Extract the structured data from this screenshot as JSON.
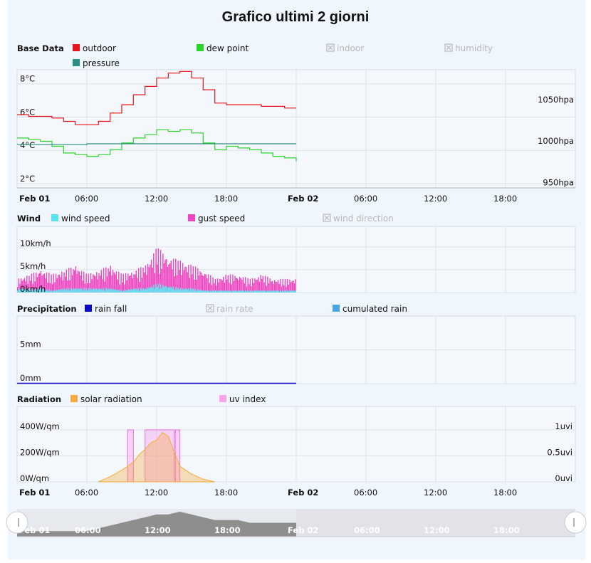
{
  "title": "Grafico ultimi 2 giorni",
  "chart_data": [
    {
      "id": "base",
      "type": "line",
      "section_label": "Base Data",
      "legend": [
        {
          "name": "outdoor",
          "color": "#e8141b",
          "enabled": true
        },
        {
          "name": "dew point",
          "color": "#2ad52a",
          "enabled": true
        },
        {
          "name": "indoor",
          "enabled": false
        },
        {
          "name": "humidity",
          "enabled": false
        },
        {
          "name": "pressure",
          "color": "#2a8f80",
          "enabled": true
        }
      ],
      "yticks_left": [
        "8°C",
        "6°C",
        "4°C",
        "2°C"
      ],
      "yticks_left_values": [
        8,
        6,
        4,
        2
      ],
      "ylim_left": [
        1.7,
        8.8
      ],
      "yticks_right": [
        "1050hpa",
        "1000hpa",
        "950hpa"
      ],
      "yticks_right_values": [
        1050,
        1000,
        950
      ],
      "ylim_right": [
        948,
        1090
      ],
      "x_hours": [
        0,
        1,
        2,
        3,
        4,
        5,
        6,
        7,
        8,
        9,
        10,
        11,
        12,
        13,
        14,
        15,
        16,
        17,
        18,
        19,
        20,
        21,
        22,
        23,
        24
      ],
      "series": [
        {
          "name": "outdoor",
          "color": "#e8141b",
          "values": [
            6.1,
            6.0,
            6.0,
            5.9,
            5.7,
            5.5,
            5.5,
            5.7,
            6.2,
            6.7,
            7.3,
            7.8,
            8.3,
            8.6,
            8.7,
            8.3,
            7.6,
            6.8,
            6.7,
            6.7,
            6.7,
            6.6,
            6.6,
            6.5,
            6.5
          ]
        },
        {
          "name": "dew point",
          "color": "#2ad52a",
          "values": [
            4.7,
            4.6,
            4.5,
            4.2,
            3.8,
            3.7,
            3.6,
            3.7,
            4.0,
            4.4,
            4.7,
            4.9,
            5.2,
            5.1,
            5.2,
            5.0,
            4.4,
            4.0,
            4.2,
            4.1,
            4.0,
            3.8,
            3.6,
            3.5,
            3.3
          ]
        },
        {
          "name": "pressure",
          "color": "#2a8f80",
          "axis": "right",
          "values": [
            1000,
            1000,
            1000,
            1000,
            1000,
            1000,
            1001,
            1001,
            1001,
            1001,
            1001,
            1001,
            1001,
            1001,
            1001,
            1001,
            1001,
            1001,
            1001,
            1001,
            1001,
            1001,
            1001,
            1001,
            1001
          ]
        }
      ]
    },
    {
      "id": "wind",
      "type": "bar",
      "section_label": "Wind",
      "legend": [
        {
          "name": "wind speed",
          "color": "#5be3ef",
          "enabled": true
        },
        {
          "name": "gust speed",
          "color": "#ee45c0",
          "enabled": true
        },
        {
          "name": "wind direction",
          "enabled": false
        }
      ],
      "yticks_left": [
        "10km/h",
        "5km/h",
        "0km/h"
      ],
      "yticks_left_values": [
        10,
        5,
        0
      ],
      "ylim_left": [
        0,
        14.5
      ],
      "x_hours": [
        0,
        1,
        2,
        3,
        4,
        5,
        6,
        7,
        8,
        9,
        10,
        11,
        12,
        13,
        14,
        15,
        16,
        17,
        18,
        19,
        20,
        21,
        22,
        23,
        24
      ],
      "series": [
        {
          "name": "gust speed",
          "color": "#ee45c0",
          "values": [
            3,
            4,
            5,
            4,
            5,
            6,
            4,
            5,
            6,
            4,
            5,
            6,
            10,
            8,
            7,
            6,
            5,
            3,
            4,
            4,
            3,
            4,
            3,
            3,
            3
          ]
        },
        {
          "name": "wind speed",
          "color": "#5be3ef",
          "values": [
            1,
            1,
            1,
            0.5,
            1,
            1,
            1,
            1,
            1,
            0.5,
            1,
            1,
            2,
            1.5,
            1,
            1,
            0.5,
            0.5,
            0.5,
            0.5,
            0.5,
            0.5,
            0.5,
            0.5,
            0.5
          ]
        }
      ]
    },
    {
      "id": "precip",
      "type": "line",
      "section_label": "Precipitation",
      "legend": [
        {
          "name": "rain fall",
          "color": "#0a0bc9",
          "enabled": true
        },
        {
          "name": "rain rate",
          "enabled": false
        },
        {
          "name": "cumulated rain",
          "color": "#4aa6ea",
          "enabled": true
        }
      ],
      "yticks_left": [
        "5mm",
        "0mm"
      ],
      "yticks_left_values": [
        5,
        0
      ],
      "ylim_left": [
        0,
        10
      ],
      "x_hours": [
        0,
        24
      ],
      "series": [
        {
          "name": "rain fall",
          "color": "#0a0bc9",
          "values": [
            0,
            0
          ]
        }
      ]
    },
    {
      "id": "radiation",
      "type": "area",
      "section_label": "Radiation",
      "legend": [
        {
          "name": "solar radiation",
          "color": "#f7a93a",
          "enabled": true
        },
        {
          "name": "uv index",
          "color": "#f7a3ee",
          "enabled": true
        }
      ],
      "yticks_left": [
        "400W/qm",
        "200W/qm",
        "0W/qm"
      ],
      "yticks_left_values": [
        400,
        200,
        0
      ],
      "ylim_left": [
        0,
        580
      ],
      "yticks_right": [
        "1uvi",
        "0.5uvi",
        "0uvi"
      ],
      "yticks_right_values": [
        1,
        0.5,
        0
      ],
      "ylim_right": [
        0,
        1.45
      ],
      "x_hours": [
        7,
        8,
        9,
        10,
        10.5,
        11,
        11.5,
        12,
        12.5,
        13,
        13.5,
        14,
        15,
        16,
        17
      ],
      "series": [
        {
          "name": "solar radiation",
          "color": "#f7a93a",
          "values": [
            0,
            40,
            90,
            150,
            210,
            250,
            300,
            320,
            380,
            350,
            230,
            120,
            60,
            20,
            0
          ]
        },
        {
          "name": "uv index",
          "color": "#f7a3ee",
          "segments": [
            [
              9.5,
              10.0,
              1
            ],
            [
              11.0,
              13.5,
              1
            ],
            [
              13.6,
              14.0,
              1
            ]
          ]
        }
      ]
    }
  ],
  "x_axis_labels": [
    "Feb 01",
    "06:00",
    "12:00",
    "18:00",
    "Feb 02",
    "06:00",
    "12:00",
    "18:00"
  ],
  "x_axis_label_hours": [
    0,
    6,
    12,
    18,
    24,
    30,
    36,
    42
  ],
  "x_axis_bold": [
    true,
    false,
    false,
    false,
    true,
    false,
    false,
    false
  ],
  "x_range_hours": [
    0,
    48
  ],
  "navigator": {
    "labels": [
      "Feb 01",
      "06:00",
      "12:00",
      "18:00",
      "Feb 02",
      "06:00",
      "12:00",
      "18:00"
    ],
    "selected_range_hours": [
      0,
      24
    ],
    "values": [
      2,
      2,
      2,
      2,
      2,
      2,
      2,
      3,
      4,
      5,
      6,
      7,
      8,
      8,
      9,
      8,
      7,
      6,
      6,
      6,
      5,
      5,
      5,
      5,
      5
    ]
  }
}
